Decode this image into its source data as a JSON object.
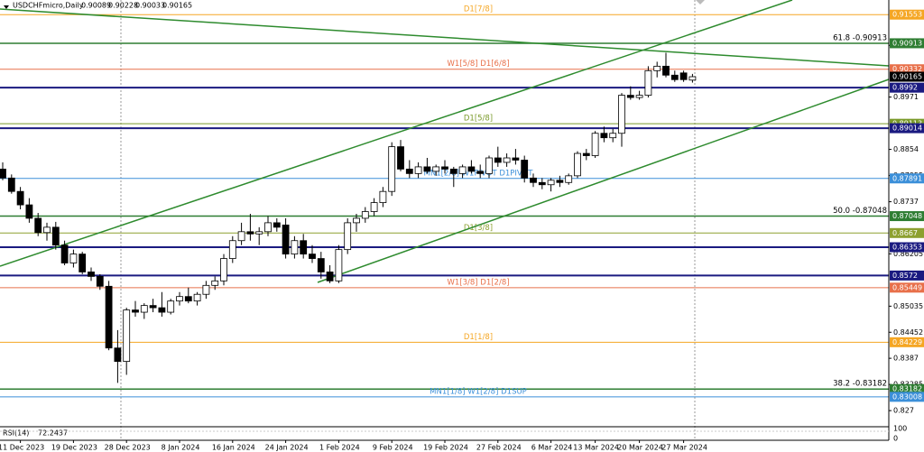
{
  "chart_data": {
    "type": "candlestick",
    "title": "USDCHFmicro,Daily",
    "up_color": "#ffffff",
    "down_color": "#000000",
    "ylim": [
      0.824,
      0.9188
    ],
    "yticks": [
      0.90865,
      0.8971,
      0.8854,
      0.87955,
      0.8737,
      0.86205,
      0.85035,
      0.84452,
      0.8387,
      0.83285,
      0.827
    ],
    "categories": [
      null,
      null,
      "11 Dec 2023",
      null,
      null,
      null,
      null,
      null,
      "19 Dec 2023",
      null,
      null,
      null,
      null,
      null,
      "28 Dec 2023",
      null,
      null,
      null,
      null,
      null,
      "8 Jan 2024",
      null,
      null,
      null,
      null,
      null,
      "16 Jan 2024",
      null,
      null,
      null,
      null,
      null,
      "24 Jan 2024",
      null,
      null,
      null,
      null,
      null,
      "1 Feb 2024",
      null,
      null,
      null,
      null,
      null,
      "9 Feb 2024",
      null,
      null,
      null,
      null,
      null,
      "19 Feb 2024",
      null,
      null,
      null,
      null,
      null,
      "27 Feb 2024",
      null,
      null,
      null,
      null,
      null,
      "6 Mar 2024",
      null,
      null,
      null,
      null,
      "13 Mar 2024",
      null,
      null,
      null,
      null,
      "20 Mar 2024",
      null,
      null,
      null,
      null,
      "27 Mar 2024",
      null
    ],
    "ohlc": [
      [
        0.881,
        0.8825,
        0.8785,
        0.879
      ],
      [
        0.879,
        0.8798,
        0.8755,
        0.876
      ],
      [
        0.876,
        0.877,
        0.872,
        0.873
      ],
      [
        0.873,
        0.8745,
        0.869,
        0.87
      ],
      [
        0.87,
        0.8712,
        0.866,
        0.8668
      ],
      [
        0.8668,
        0.869,
        0.865,
        0.868
      ],
      [
        0.868,
        0.8692,
        0.863,
        0.864
      ],
      [
        0.864,
        0.865,
        0.8595,
        0.86
      ],
      [
        0.86,
        0.863,
        0.859,
        0.862
      ],
      [
        0.862,
        0.8625,
        0.8575,
        0.858
      ],
      [
        0.858,
        0.859,
        0.856,
        0.857
      ],
      [
        0.857,
        0.8575,
        0.854,
        0.8548
      ],
      [
        0.8548,
        0.856,
        0.8405,
        0.841
      ],
      [
        0.841,
        0.845,
        0.8332,
        0.838
      ],
      [
        0.838,
        0.85,
        0.835,
        0.8495
      ],
      [
        0.8495,
        0.8515,
        0.848,
        0.849
      ],
      [
        0.849,
        0.851,
        0.8475,
        0.8505
      ],
      [
        0.8505,
        0.852,
        0.849,
        0.85
      ],
      [
        0.85,
        0.8535,
        0.848,
        0.849
      ],
      [
        0.849,
        0.852,
        0.8485,
        0.8515
      ],
      [
        0.8515,
        0.8535,
        0.8505,
        0.8525
      ],
      [
        0.8525,
        0.8545,
        0.851,
        0.8515
      ],
      [
        0.8515,
        0.8535,
        0.8505,
        0.853
      ],
      [
        0.853,
        0.856,
        0.852,
        0.855
      ],
      [
        0.855,
        0.857,
        0.854,
        0.856
      ],
      [
        0.856,
        0.862,
        0.855,
        0.861
      ],
      [
        0.861,
        0.866,
        0.86,
        0.865
      ],
      [
        0.865,
        0.869,
        0.864,
        0.867
      ],
      [
        0.867,
        0.871,
        0.865,
        0.8665
      ],
      [
        0.8665,
        0.868,
        0.864,
        0.867
      ],
      [
        0.867,
        0.8705,
        0.866,
        0.869
      ],
      [
        0.869,
        0.87,
        0.867,
        0.868
      ],
      [
        0.8685,
        0.87,
        0.861,
        0.862
      ],
      [
        0.862,
        0.866,
        0.861,
        0.865
      ],
      [
        0.865,
        0.8665,
        0.861,
        0.862
      ],
      [
        0.862,
        0.864,
        0.86,
        0.861
      ],
      [
        0.861,
        0.8625,
        0.8565,
        0.858
      ],
      [
        0.858,
        0.8595,
        0.8555,
        0.856
      ],
      [
        0.856,
        0.864,
        0.8555,
        0.863
      ],
      [
        0.863,
        0.87,
        0.862,
        0.869
      ],
      [
        0.869,
        0.871,
        0.867,
        0.87
      ],
      [
        0.87,
        0.8725,
        0.869,
        0.8715
      ],
      [
        0.8715,
        0.8745,
        0.8705,
        0.8735
      ],
      [
        0.8735,
        0.877,
        0.8725,
        0.876
      ],
      [
        0.876,
        0.887,
        0.875,
        0.886
      ],
      [
        0.886,
        0.8875,
        0.8805,
        0.881
      ],
      [
        0.881,
        0.883,
        0.879,
        0.88
      ],
      [
        0.88,
        0.8825,
        0.879,
        0.8815
      ],
      [
        0.8815,
        0.8835,
        0.88,
        0.8805
      ],
      [
        0.8805,
        0.882,
        0.8795,
        0.8815
      ],
      [
        0.8815,
        0.883,
        0.88,
        0.881
      ],
      [
        0.881,
        0.8815,
        0.877,
        0.88
      ],
      [
        0.88,
        0.882,
        0.879,
        0.8815
      ],
      [
        0.8815,
        0.883,
        0.88,
        0.8805
      ],
      [
        0.8805,
        0.882,
        0.879,
        0.88
      ],
      [
        0.88,
        0.884,
        0.879,
        0.8835
      ],
      [
        0.8835,
        0.886,
        0.8815,
        0.8825
      ],
      [
        0.8825,
        0.8845,
        0.8815,
        0.8835
      ],
      [
        0.8835,
        0.8855,
        0.882,
        0.883
      ],
      [
        0.883,
        0.884,
        0.878,
        0.879
      ],
      [
        0.879,
        0.88,
        0.877,
        0.878
      ],
      [
        0.878,
        0.879,
        0.8765,
        0.8775
      ],
      [
        0.8775,
        0.879,
        0.876,
        0.8785
      ],
      [
        0.8785,
        0.8795,
        0.877,
        0.878
      ],
      [
        0.878,
        0.88,
        0.8775,
        0.8795
      ],
      [
        0.8795,
        0.885,
        0.879,
        0.8845
      ],
      [
        0.8845,
        0.8855,
        0.883,
        0.884
      ],
      [
        0.884,
        0.8895,
        0.8835,
        0.889
      ],
      [
        0.889,
        0.8905,
        0.887,
        0.888
      ],
      [
        0.888,
        0.89,
        0.887,
        0.889
      ],
      [
        0.889,
        0.898,
        0.886,
        0.8975
      ],
      [
        0.8975,
        0.8995,
        0.8965,
        0.897
      ],
      [
        0.897,
        0.8985,
        0.8965,
        0.8975
      ],
      [
        0.8975,
        0.904,
        0.897,
        0.903
      ],
      [
        0.903,
        0.905,
        0.9015,
        0.904
      ],
      [
        0.904,
        0.907,
        0.9015,
        0.902
      ],
      [
        0.902,
        0.903,
        0.9005,
        0.901
      ],
      [
        0.9025,
        0.903,
        0.9005,
        0.901
      ],
      [
        0.90089,
        0.90228,
        0.90033,
        0.90165
      ]
    ],
    "levels": [
      {
        "value": 0.91553,
        "label": "D1[7/8]",
        "color": "#f5a623",
        "width": 1
      },
      {
        "value": 0.90913,
        "label": "61.8 -0.90913",
        "color": "#2e7d32",
        "width": 1.5
      },
      {
        "value": 0.90332,
        "label": "W1[5/8] D1[6/8]",
        "color": "#e8704a",
        "width": 1
      },
      {
        "value": 0.90165,
        "color": "#000000",
        "width": 0
      },
      {
        "value": 0.8992,
        "color": "#1a1a80",
        "width": 2
      },
      {
        "value": 0.89113,
        "label": "D1[5/8]",
        "color": "#7a9a2a",
        "width": 1
      },
      {
        "value": 0.89014,
        "color": "#1a1a80",
        "width": 2
      },
      {
        "value": 0.87891,
        "label": "MN1[2/8] W1PIVOT D1PIVOT",
        "color": "#3b8fd9",
        "width": 1
      },
      {
        "value": 0.87048,
        "label": "50.0 -0.87048",
        "color": "#2e7d32",
        "width": 1.5
      },
      {
        "value": 0.8667,
        "label": "D1[3/8]",
        "color": "#8da030",
        "width": 1
      },
      {
        "value": 0.86353,
        "color": "#1a1a80",
        "width": 2
      },
      {
        "value": 0.8572,
        "color": "#1a1a80",
        "width": 2
      },
      {
        "value": 0.85449,
        "label": "W1[3/8] D1[2/8]",
        "color": "#e8704a",
        "width": 1
      },
      {
        "value": 0.84229,
        "label": "D1[1/8]",
        "color": "#f5a623",
        "width": 1
      },
      {
        "value": 0.83182,
        "label": "38.2 -0.83182",
        "color": "#2e7d32",
        "width": 1.5
      },
      {
        "value": 0.83008,
        "label": "MN1[1/8] W1[2/8] D1SUP",
        "color": "#3b8fd9",
        "width": 1
      }
    ],
    "rsi": {
      "name": "RSI(14)",
      "value": 72.2437,
      "ylim": [
        0,
        100
      ],
      "yticks": [
        100,
        0
      ]
    }
  }
}
